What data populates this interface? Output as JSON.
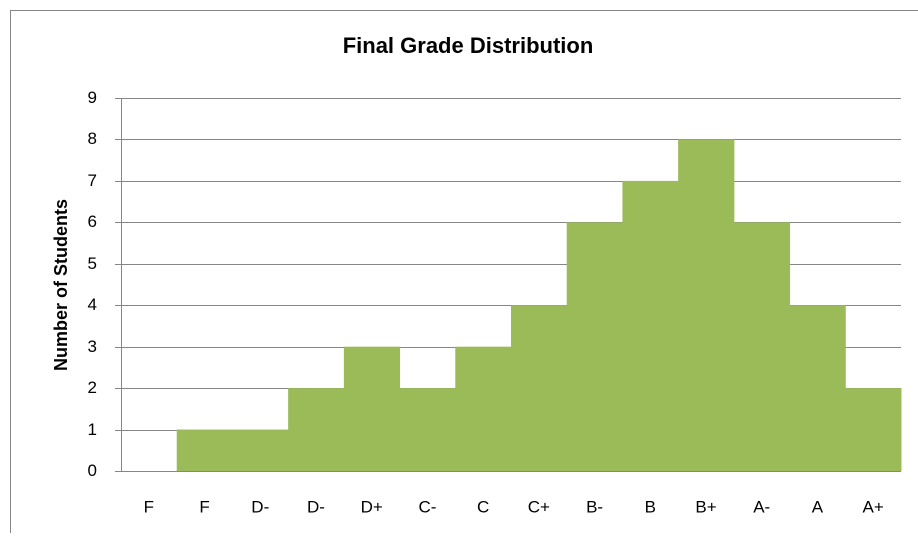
{
  "chart_data": {
    "type": "bar",
    "title": "Final Grade Distribution",
    "y_label": "Number of Students",
    "categories": [
      "F",
      "F",
      "D-",
      "D-",
      "D+",
      "C-",
      "C",
      "C+",
      "B-",
      "B",
      "B+",
      "A-",
      "A",
      "A+"
    ],
    "values": [
      0,
      1,
      1,
      2,
      3,
      2,
      3,
      4,
      6,
      7,
      8,
      6,
      4,
      2
    ],
    "color": "#9bbb59",
    "ylim": [
      0,
      9
    ],
    "yticks": [
      0,
      1,
      2,
      3,
      4,
      5,
      6,
      7,
      8,
      9
    ],
    "grid": true
  }
}
